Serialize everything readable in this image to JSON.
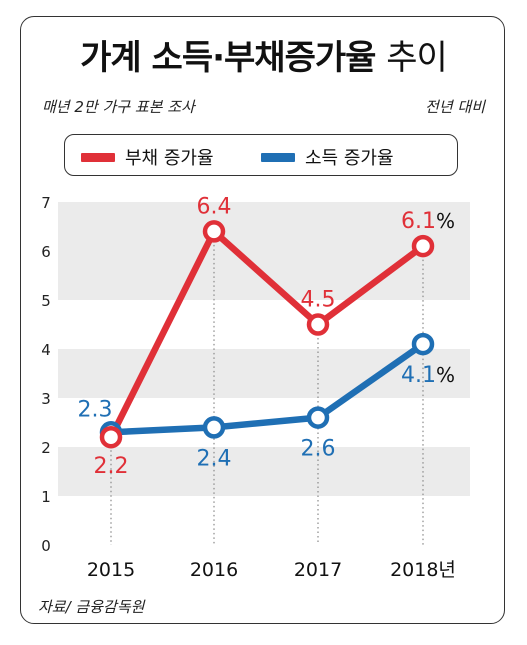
{
  "title": {
    "main": "가계 소득·부채증가율",
    "suffix": "추이"
  },
  "subtitle_left": "매년 2만 가구 표본 조사",
  "subtitle_right": "전년 대비",
  "source": "자료/ 금융감독원",
  "chart_data": {
    "type": "line",
    "categories": [
      "2015",
      "2016",
      "2017",
      "2018년"
    ],
    "ylim": [
      0,
      7
    ],
    "yticks": [
      "0",
      "1",
      "2",
      "3",
      "4",
      "5",
      "6",
      "7"
    ],
    "grid": "alternating horizontal bands",
    "legend_position": "top",
    "series": [
      {
        "name": "부채 증가율",
        "color": "#e03038",
        "values": [
          2.2,
          6.4,
          4.5,
          6.1
        ],
        "labels": [
          "2.2",
          "6.4",
          "4.5",
          "6.1"
        ],
        "last_suffix": "%"
      },
      {
        "name": "소득 증가율",
        "color": "#1f6fb4",
        "values": [
          2.3,
          2.4,
          2.6,
          4.1
        ],
        "labels": [
          "2.3",
          "2.4",
          "2.6",
          "4.1"
        ],
        "last_suffix": "%"
      }
    ]
  }
}
